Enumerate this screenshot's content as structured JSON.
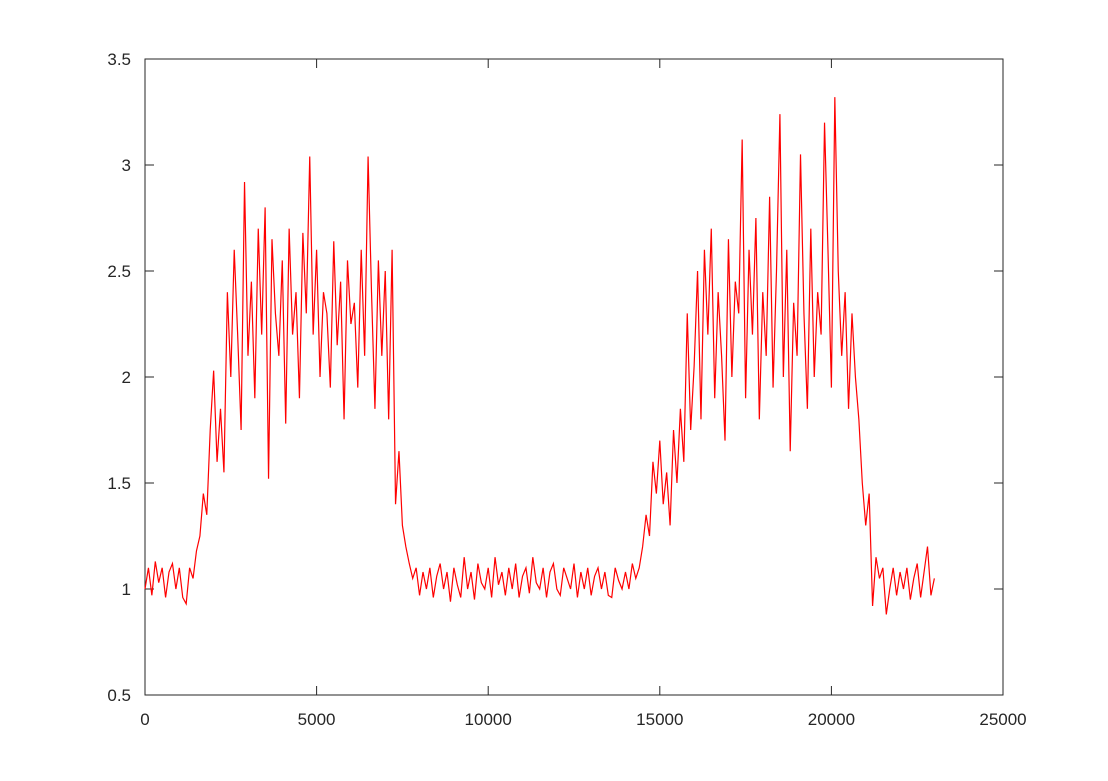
{
  "chart_data": {
    "type": "line",
    "x": [
      0,
      100,
      200,
      300,
      400,
      500,
      600,
      700,
      800,
      900,
      1000,
      1100,
      1200,
      1300,
      1400,
      1500,
      1600,
      1700,
      1800,
      1900,
      2000,
      2100,
      2200,
      2300,
      2400,
      2500,
      2600,
      2700,
      2800,
      2900,
      3000,
      3100,
      3200,
      3300,
      3400,
      3500,
      3600,
      3700,
      3800,
      3900,
      4000,
      4100,
      4200,
      4300,
      4400,
      4500,
      4600,
      4700,
      4800,
      4900,
      5000,
      5100,
      5200,
      5300,
      5400,
      5500,
      5600,
      5700,
      5800,
      5900,
      6000,
      6100,
      6200,
      6300,
      6400,
      6500,
      6600,
      6700,
      6800,
      6900,
      7000,
      7100,
      7200,
      7300,
      7400,
      7500,
      7600,
      7700,
      7800,
      7900,
      8000,
      8100,
      8200,
      8300,
      8400,
      8500,
      8600,
      8700,
      8800,
      8900,
      9000,
      9100,
      9200,
      9300,
      9400,
      9500,
      9600,
      9700,
      9800,
      9900,
      10000,
      10100,
      10200,
      10300,
      10400,
      10500,
      10600,
      10700,
      10800,
      10900,
      11000,
      11100,
      11200,
      11300,
      11400,
      11500,
      11600,
      11700,
      11800,
      11900,
      12000,
      12100,
      12200,
      12300,
      12400,
      12500,
      12600,
      12700,
      12800,
      12900,
      13000,
      13100,
      13200,
      13300,
      13400,
      13500,
      13600,
      13700,
      13800,
      13900,
      14000,
      14100,
      14200,
      14300,
      14400,
      14500,
      14600,
      14700,
      14800,
      14900,
      15000,
      15100,
      15200,
      15300,
      15400,
      15500,
      15600,
      15700,
      15800,
      15900,
      16000,
      16100,
      16200,
      16300,
      16400,
      16500,
      16600,
      16700,
      16800,
      16900,
      17000,
      17100,
      17200,
      17300,
      17400,
      17500,
      17600,
      17700,
      17800,
      17900,
      18000,
      18100,
      18200,
      18300,
      18400,
      18500,
      18600,
      18700,
      18800,
      18900,
      19000,
      19100,
      19200,
      19300,
      19400,
      19500,
      19600,
      19700,
      19800,
      19900,
      20000,
      20100,
      20200,
      20300,
      20400,
      20500,
      20600,
      20700,
      20800,
      20900,
      21000,
      21100,
      21200,
      21300,
      21400,
      21500,
      21600,
      21700,
      21800,
      21900,
      22000,
      22100,
      22200,
      22300,
      22400,
      22500,
      22600,
      22700,
      22800,
      22900,
      23000
    ],
    "series": [
      {
        "color": "#ff0000",
        "values": [
          1.0,
          1.1,
          0.97,
          1.13,
          1.03,
          1.1,
          0.96,
          1.08,
          1.12,
          1.0,
          1.1,
          0.96,
          0.93,
          1.1,
          1.05,
          1.18,
          1.25,
          1.45,
          1.35,
          1.75,
          2.03,
          1.6,
          1.85,
          1.55,
          2.4,
          2.0,
          2.6,
          2.2,
          1.75,
          2.92,
          2.1,
          2.45,
          1.9,
          2.7,
          2.2,
          2.8,
          1.52,
          2.65,
          2.3,
          2.1,
          2.55,
          1.78,
          2.7,
          2.2,
          2.4,
          1.9,
          2.68,
          2.3,
          3.04,
          2.2,
          2.6,
          2.0,
          2.4,
          2.3,
          1.95,
          2.64,
          2.15,
          2.45,
          1.8,
          2.55,
          2.25,
          2.35,
          1.95,
          2.6,
          2.1,
          3.04,
          2.4,
          1.85,
          2.55,
          2.1,
          2.5,
          1.8,
          2.6,
          1.4,
          1.65,
          1.3,
          1.2,
          1.12,
          1.05,
          1.1,
          0.97,
          1.08,
          1.0,
          1.1,
          0.96,
          1.06,
          1.12,
          1.0,
          1.08,
          0.94,
          1.1,
          1.02,
          0.96,
          1.15,
          1.0,
          1.08,
          0.95,
          1.12,
          1.03,
          1.0,
          1.1,
          0.96,
          1.15,
          1.02,
          1.08,
          0.97,
          1.1,
          1.0,
          1.12,
          0.96,
          1.06,
          1.1,
          0.98,
          1.15,
          1.03,
          1.0,
          1.1,
          0.96,
          1.08,
          1.12,
          1.0,
          0.97,
          1.1,
          1.05,
          1.0,
          1.12,
          0.96,
          1.08,
          1.0,
          1.1,
          0.97,
          1.06,
          1.1,
          1.0,
          1.08,
          0.97,
          0.96,
          1.1,
          1.04,
          1.0,
          1.08,
          1.0,
          1.12,
          1.05,
          1.1,
          1.2,
          1.35,
          1.25,
          1.6,
          1.45,
          1.7,
          1.4,
          1.55,
          1.3,
          1.75,
          1.5,
          1.85,
          1.6,
          2.3,
          1.75,
          2.05,
          2.5,
          1.8,
          2.6,
          2.2,
          2.7,
          1.9,
          2.4,
          2.1,
          1.7,
          2.65,
          2.0,
          2.45,
          2.3,
          3.12,
          1.9,
          2.6,
          2.2,
          2.75,
          1.8,
          2.4,
          2.1,
          2.85,
          1.95,
          2.5,
          3.24,
          2.0,
          2.6,
          1.65,
          2.35,
          2.1,
          3.05,
          2.3,
          1.85,
          2.7,
          2.0,
          2.4,
          2.2,
          3.2,
          2.6,
          1.95,
          3.32,
          2.5,
          2.1,
          2.4,
          1.85,
          2.3,
          2.0,
          1.8,
          1.5,
          1.3,
          1.45,
          0.92,
          1.15,
          1.05,
          1.1,
          0.88,
          1.0,
          1.1,
          0.97,
          1.08,
          1.0,
          1.1,
          0.95,
          1.05,
          1.12,
          0.96,
          1.08,
          1.2,
          0.97,
          1.05
        ]
      }
    ],
    "xlim": [
      0,
      25000
    ],
    "xticks": [
      0,
      5000,
      10000,
      15000,
      20000,
      25000
    ],
    "ylim": [
      0.5,
      3.5
    ],
    "yticks": [
      0.5,
      1,
      1.5,
      2,
      2.5,
      3,
      3.5
    ]
  }
}
